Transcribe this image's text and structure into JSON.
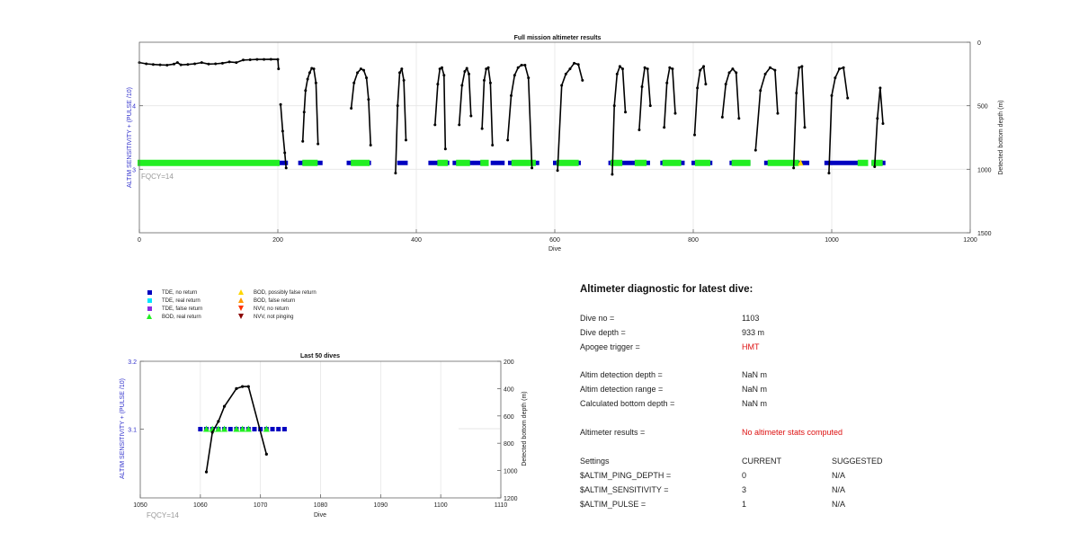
{
  "colors": {
    "tde_no_return": "#0000c0",
    "tde_real_return": "#00e5ff",
    "tde_false_return": "#8a2be2",
    "bod_real_return": "#22ee22",
    "bod_possibly_false": "#ffd700",
    "bod_false_return": "#ff9900",
    "nvv_no_return": "#ff3300",
    "nvv_not_pinging": "#8b0000",
    "left_axis": "#3333cc",
    "depth_line": "#000000",
    "red_text": "#dd1111"
  },
  "chart_data": [
    {
      "type": "line",
      "title": "Full mission altimeter results",
      "xlabel": "Dive",
      "ylabel_left": "ALTIM SENSITIVITY + (PULSE /10)",
      "ylabel_right": "Detected bottom depth (m)",
      "xlim": [
        0,
        1200
      ],
      "xticks": [
        "0",
        "200",
        "400",
        "600",
        "800",
        "1000",
        "1200"
      ],
      "ylim_left": [
        2,
        5
      ],
      "yticks_left": [
        "3",
        "4"
      ],
      "ylim_right": [
        1500,
        0
      ],
      "yticks_right": [
        "0",
        "500",
        "1000",
        "1500"
      ],
      "grid": true,
      "annotation": "FQCY=14",
      "tde_sensitivity": 3.1,
      "tde_ranges": [
        [
          0,
          200
        ],
        [
          202,
          212
        ],
        [
          232,
          262
        ],
        [
          302,
          332
        ],
        [
          375,
          385
        ],
        [
          420,
          445
        ],
        [
          455,
          480
        ],
        [
          485,
          500
        ],
        [
          510,
          525
        ],
        [
          535,
          575
        ],
        [
          600,
          635
        ],
        [
          680,
          710
        ],
        [
          715,
          735
        ],
        [
          755,
          785
        ],
        [
          800,
          825
        ],
        [
          855,
          880
        ],
        [
          905,
          920
        ],
        [
          925,
          965
        ],
        [
          992,
          1030
        ],
        [
          1035,
          1050
        ],
        [
          1060,
          1075
        ]
      ],
      "bod_ranges": [
        [
          0,
          200
        ],
        [
          238,
          255
        ],
        [
          308,
          330
        ],
        [
          433,
          443
        ],
        [
          460,
          475
        ],
        [
          495,
          502
        ],
        [
          540,
          570
        ],
        [
          605,
          632
        ],
        [
          683,
          695
        ],
        [
          718,
          730
        ],
        [
          758,
          780
        ],
        [
          805,
          822
        ],
        [
          858,
          880
        ],
        [
          910,
          950
        ],
        [
          1040,
          1050
        ],
        [
          1060,
          1071
        ]
      ],
      "bod_possibly_false_x": [
        955
      ],
      "depth_series": [
        {
          "x": [
            0,
            10,
            20,
            30,
            40,
            50,
            55,
            60,
            70,
            80,
            90,
            100,
            110,
            120,
            130,
            140,
            150,
            160,
            170,
            180,
            190,
            200,
            201
          ],
          "y": [
            160,
            170,
            175,
            178,
            180,
            172,
            160,
            178,
            175,
            170,
            160,
            172,
            170,
            165,
            155,
            160,
            140,
            138,
            135,
            135,
            134,
            135,
            210
          ]
        },
        {
          "x": [
            204,
            207,
            210,
            212
          ],
          "y": [
            490,
            700,
            870,
            990
          ]
        },
        {
          "x": [
            236,
            238,
            240,
            243,
            246,
            249,
            252,
            255,
            258
          ],
          "y": [
            780,
            550,
            380,
            290,
            240,
            205,
            210,
            320,
            800
          ]
        },
        {
          "x": [
            306,
            310,
            315,
            320,
            324,
            328,
            331,
            334
          ],
          "y": [
            520,
            320,
            240,
            210,
            220,
            280,
            450,
            810
          ]
        },
        {
          "x": [
            370,
            373,
            376,
            379,
            382,
            385
          ],
          "y": [
            1030,
            500,
            240,
            210,
            300,
            770
          ]
        },
        {
          "x": [
            427,
            431,
            434,
            437,
            440,
            442
          ],
          "y": [
            650,
            330,
            210,
            200,
            260,
            840
          ]
        },
        {
          "x": [
            462,
            466,
            470,
            473,
            476,
            479
          ],
          "y": [
            650,
            340,
            230,
            205,
            250,
            580
          ]
        },
        {
          "x": [
            495,
            498,
            501,
            504,
            507,
            510
          ],
          "y": [
            680,
            300,
            210,
            200,
            320,
            810
          ]
        },
        {
          "x": [
            532,
            537,
            542,
            547,
            552,
            557,
            562,
            567
          ],
          "y": [
            770,
            420,
            260,
            200,
            180,
            180,
            280,
            990
          ]
        },
        {
          "x": [
            604,
            610,
            616,
            622,
            628,
            634,
            640
          ],
          "y": [
            1010,
            340,
            250,
            210,
            165,
            175,
            300
          ]
        },
        {
          "x": [
            683,
            686,
            690,
            694,
            698,
            702
          ],
          "y": [
            1040,
            500,
            250,
            190,
            210,
            550
          ]
        },
        {
          "x": [
            722,
            726,
            730,
            734,
            738
          ],
          "y": [
            690,
            350,
            200,
            210,
            500
          ]
        },
        {
          "x": [
            758,
            762,
            766,
            770,
            774
          ],
          "y": [
            670,
            320,
            200,
            210,
            560
          ]
        },
        {
          "x": [
            802,
            806,
            810,
            815,
            818
          ],
          "y": [
            730,
            360,
            220,
            190,
            330
          ]
        },
        {
          "x": [
            842,
            847,
            852,
            857,
            862,
            866
          ],
          "y": [
            590,
            330,
            240,
            210,
            240,
            600
          ]
        },
        {
          "x": [
            890,
            897,
            904,
            911,
            918,
            922
          ],
          "y": [
            850,
            380,
            250,
            200,
            220,
            560
          ]
        },
        {
          "x": [
            945,
            949,
            953,
            957,
            961
          ],
          "y": [
            990,
            400,
            200,
            190,
            670
          ]
        },
        {
          "x": [
            996,
            1000,
            1005,
            1011,
            1017,
            1023
          ],
          "y": [
            1030,
            420,
            280,
            210,
            200,
            440
          ]
        },
        {
          "x": [
            1062,
            1066,
            1070,
            1074
          ],
          "y": [
            980,
            600,
            360,
            640
          ]
        }
      ]
    },
    {
      "type": "line",
      "title": "Last 50 dives",
      "xlabel": "Dive",
      "ylabel_left": "ALTIM SENSITIVITY + (PULSE /10)",
      "ylabel_right": "Detected bottom depth (m)",
      "xlim": [
        1050,
        1110
      ],
      "xticks": [
        "1050",
        "1060",
        "1070",
        "1080",
        "1090",
        "1100",
        "1110"
      ],
      "ylim_left": [
        3.0,
        3.2
      ],
      "yticks_left": [
        "3.1",
        "3.2"
      ],
      "ylim_right": [
        1200,
        200
      ],
      "yticks_right": [
        "200",
        "400",
        "600",
        "800",
        "1000",
        "1200"
      ],
      "grid": true,
      "annotation": "FQCY=14",
      "tde_x": [
        1060,
        1061,
        1062,
        1063,
        1064,
        1065,
        1066,
        1067,
        1068,
        1069,
        1070,
        1071,
        1072,
        1073,
        1074
      ],
      "tde_y": 3.1,
      "bod_x": [
        1061,
        1062,
        1063,
        1064,
        1066,
        1067,
        1068,
        1071
      ],
      "depth_x": [
        1061,
        1062,
        1063,
        1064,
        1066,
        1067,
        1068,
        1071
      ],
      "depth_y": [
        1010,
        720,
        640,
        530,
        400,
        385,
        385,
        880
      ]
    }
  ],
  "legend": {
    "items": [
      {
        "label": "TDE, no return",
        "shape": "square",
        "color_key": "tde_no_return"
      },
      {
        "label": "TDE, real return",
        "shape": "square",
        "color_key": "tde_real_return"
      },
      {
        "label": "TDE, false return",
        "shape": "square",
        "color_key": "tde_false_return"
      },
      {
        "label": "BOD, real return",
        "shape": "triangle-up",
        "color_key": "bod_real_return"
      },
      {
        "label": "BOD, possibly false return",
        "shape": "triangle-up",
        "color_key": "bod_possibly_false"
      },
      {
        "label": "BOD, false return",
        "shape": "triangle-up",
        "color_key": "bod_false_return"
      },
      {
        "label": "NVV, no return",
        "shape": "triangle-down",
        "color_key": "nvv_no_return"
      },
      {
        "label": "NVV, not pinging",
        "shape": "triangle-down",
        "color_key": "nvv_not_pinging"
      }
    ]
  },
  "diagnostic": {
    "title": "Altimeter diagnostic for latest dive:",
    "dive_no_label": "Dive no =",
    "dive_no_value": "1103",
    "dive_depth_label": "Dive depth =",
    "dive_depth_value": "933 m",
    "apogee_label": "Apogee trigger =",
    "apogee_value": "HMT",
    "altim_depth_label": "Altim detection depth =",
    "altim_depth_value": "NaN m",
    "altim_range_label": "Altim detection range =",
    "altim_range_value": "NaN m",
    "bottom_depth_label": "Calculated bottom depth =",
    "bottom_depth_value": "NaN m",
    "results_label": "Altimeter results =",
    "results_value": "No altimeter stats computed",
    "settings_label": "Settings",
    "current_label": "CURRENT",
    "suggested_label": "SUGGESTED",
    "ping_depth_label": "$ALTIM_PING_DEPTH =",
    "ping_depth_current": "0",
    "ping_depth_suggested": "N/A",
    "sensitivity_label": "$ALTIM_SENSITIVITY =",
    "sensitivity_current": "3",
    "sensitivity_suggested": "N/A",
    "pulse_label": "$ALTIM_PULSE =",
    "pulse_current": "1",
    "pulse_suggested": "N/A"
  }
}
